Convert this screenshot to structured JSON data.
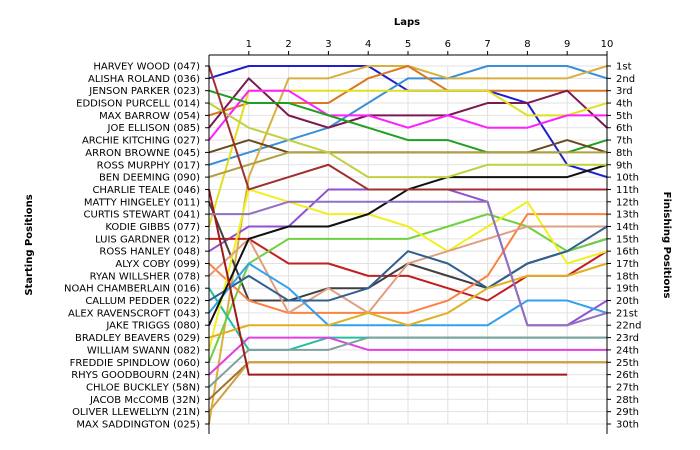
{
  "chart_data": {
    "type": "line",
    "title": "",
    "xlabel": "Laps",
    "ylabel_left": "Starting Positions",
    "ylabel_right": "Finishing Positions",
    "laps": [
      1,
      2,
      3,
      4,
      5,
      6,
      7,
      8,
      9,
      10
    ],
    "xlim": [
      0,
      10
    ],
    "ylim": [
      1,
      30
    ],
    "grid": true,
    "drivers": [
      "HARVEY WOOD (047)",
      "ALISHA ROLAND (036)",
      "JENSON PARKER (023)",
      "EDDISON PURCELL (014)",
      "MAX BARROW (054)",
      "JOE ELLISON (085)",
      "ARCHIE KITCHING (027)",
      "ARRON BROWNE (045)",
      "ROSS MURPHY (017)",
      "BEN DEEMING (090)",
      "CHARLIE TEALE (046)",
      "MATTY HINGELEY (011)",
      "CURTIS STEWART (041)",
      "KODIE GIBBS (077)",
      "LUIS GARDNER (012)",
      "ROSS HANLEY (048)",
      "ALYX COBY (099)",
      "RYAN WILLSHER (078)",
      "NOAH CHAMBERLAIN (016)",
      "CALLUM PEDDER (022)",
      "ALEX RAVENSCROFT (043)",
      "JAKE TRIGGS (080)",
      "BRADLEY BEAVERS (029)",
      "WILLIAM SWANN (082)",
      "FREDDIE SPINDLOW (060)",
      "RHYS GOODBOURN (24N)",
      "CHLOE BUCKLEY (58N)",
      "JACOB McCOMB (32N)",
      "OLIVER LLEWELLYN (21N)",
      "MAX SADDINGTON (025)"
    ],
    "finishing_labels": [
      "1st",
      "2nd",
      "3rd",
      "4th",
      "5th",
      "6th",
      "7th",
      "8th",
      "9th",
      "10th",
      "11th",
      "12th",
      "13th",
      "14th",
      "15th",
      "16th",
      "17th",
      "18th",
      "19th",
      "20th",
      "21st",
      "22nd",
      "23rd",
      "24th",
      "25th",
      "26th",
      "27th",
      "28th",
      "29th",
      "30th"
    ],
    "series": [
      {
        "color": "#1f1fd0",
        "positions": [
          2,
          1,
          1,
          1,
          1,
          3,
          3,
          3,
          4,
          9,
          10
        ]
      },
      {
        "color": "#3a8fd8",
        "positions": [
          9,
          8,
          7,
          6,
          4,
          2,
          2,
          1,
          1,
          1,
          2
        ]
      },
      {
        "color": "#d8b040",
        "positions": [
          30,
          10,
          2,
          2,
          1,
          1,
          2,
          2,
          2,
          2,
          1
        ]
      },
      {
        "color": "#d87820",
        "positions": [
          5,
          4,
          4,
          4,
          2,
          1,
          3,
          3,
          3,
          3,
          3
        ]
      },
      {
        "color": "#7a1a50",
        "positions": [
          6,
          2,
          5,
          6,
          5,
          5,
          5,
          4,
          4,
          3,
          6
        ]
      },
      {
        "color": "#e0e020",
        "positions": [
          14,
          3,
          3,
          3,
          3,
          3,
          3,
          3,
          5,
          5,
          4
        ]
      },
      {
        "color": "#ff20ff",
        "positions": [
          7,
          3,
          3,
          5,
          5,
          6,
          5,
          6,
          6,
          5,
          5
        ]
      },
      {
        "color": "#20a020",
        "positions": [
          3,
          4,
          4,
          5,
          6,
          7,
          7,
          8,
          8,
          8,
          7
        ]
      },
      {
        "color": "#6a4a20",
        "positions": [
          8,
          7,
          8,
          8,
          8,
          8,
          8,
          8,
          8,
          7,
          8
        ]
      },
      {
        "color": "#b0a040",
        "positions": [
          10,
          9,
          8,
          8,
          8,
          8,
          8,
          8,
          8,
          8,
          8
        ]
      },
      {
        "color": "#9050d0",
        "positions": [
          16,
          14,
          14,
          11,
          11,
          11,
          11,
          12,
          22,
          22,
          20
        ]
      },
      {
        "color": "#c02020",
        "positions": [
          15,
          15,
          17,
          17,
          18,
          18,
          19,
          20,
          18,
          18,
          16
        ]
      },
      {
        "color": "#404040",
        "positions": [
          12,
          20,
          20,
          19,
          19,
          17,
          18,
          19,
          17,
          16,
          15
        ]
      },
      {
        "color": "#70d040",
        "positions": [
          25,
          17,
          15,
          15,
          15,
          15,
          14,
          13,
          14,
          16,
          15
        ]
      },
      {
        "color": "#20c0a0",
        "positions": [
          19,
          24,
          24,
          23,
          23,
          23,
          23,
          23,
          23,
          23,
          23
        ]
      },
      {
        "color": "#ff8040",
        "positions": [
          17,
          20,
          21,
          21,
          21,
          21,
          20,
          18,
          13,
          13,
          13
        ]
      },
      {
        "color": "#f0f020",
        "positions": [
          24,
          11,
          12,
          13,
          13,
          14,
          16,
          14,
          12,
          17,
          16
        ]
      },
      {
        "color": "#e0a080",
        "positions": [
          18,
          15,
          21,
          19,
          21,
          17,
          16,
          15,
          14,
          14,
          14
        ]
      },
      {
        "color": "#306090",
        "positions": [
          20,
          18,
          20,
          20,
          19,
          16,
          17,
          19,
          17,
          16,
          14
        ]
      },
      {
        "color": "#30a0f0",
        "positions": [
          21,
          17,
          19,
          22,
          22,
          22,
          22,
          22,
          20,
          20,
          21
        ]
      },
      {
        "color": "#101010",
        "positions": [
          22,
          15,
          14,
          14,
          13,
          11,
          10,
          10,
          10,
          10,
          9
        ]
      },
      {
        "color": "#e0b020",
        "positions": [
          23,
          22,
          22,
          22,
          21,
          22,
          21,
          19,
          18,
          18,
          17
        ]
      },
      {
        "color": "#e040e0",
        "positions": [
          26,
          23,
          23,
          23,
          24,
          24,
          24,
          24,
          24,
          24,
          24
        ]
      },
      {
        "color": "#80a0a0",
        "positions": [
          27,
          24,
          24,
          24,
          23,
          23,
          23,
          23,
          23,
          23,
          23
        ]
      },
      {
        "color": "#a07030",
        "positions": [
          28,
          25,
          25,
          25,
          25,
          25,
          25,
          25,
          25,
          25,
          25
        ]
      },
      {
        "color": "#d0a040",
        "positions": [
          29,
          25,
          25,
          25,
          25,
          25,
          25,
          25,
          25,
          25,
          25
        ]
      },
      {
        "color": "#a01818",
        "positions": [
          11,
          26,
          26,
          26,
          26,
          26,
          26,
          26,
          26,
          26
        ]
      },
      {
        "color": "#9070c0",
        "positions": [
          13,
          13,
          12,
          12,
          12,
          12,
          12,
          12,
          22,
          22,
          21
        ]
      },
      {
        "color": "#c0d040",
        "positions": [
          4,
          6,
          7,
          8,
          10,
          10,
          10,
          9,
          9,
          9,
          9
        ]
      },
      {
        "color": "#a03030",
        "positions": [
          1,
          11,
          10,
          9,
          11,
          11,
          11,
          11,
          11,
          11,
          11
        ]
      }
    ]
  }
}
